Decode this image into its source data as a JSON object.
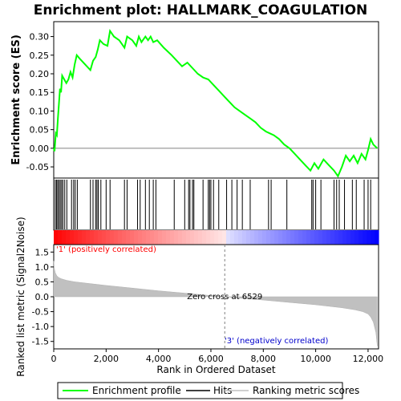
{
  "title": "Enrichment plot: HALLMARK_COAGULATION",
  "chart_data": {
    "type": "line",
    "top_panel": {
      "ylabel": "Enrichment score (ES)",
      "ylim": [
        -0.08,
        0.34
      ],
      "yticks": [
        -0.05,
        0.0,
        0.05,
        0.1,
        0.15,
        0.2,
        0.25,
        0.3
      ],
      "ytick_labels": [
        "-0.05",
        "0.00",
        "0.05",
        "0.10",
        "0.15",
        "0.20",
        "0.25",
        "0.30"
      ],
      "series": [
        {
          "name": "Enrichment profile",
          "color": "#00ff00",
          "x": [
            0,
            30,
            80,
            120,
            160,
            200,
            240,
            280,
            320,
            400,
            480,
            560,
            640,
            720,
            800,
            880,
            1000,
            1200,
            1400,
            1500,
            1600,
            1680,
            1760,
            1900,
            2050,
            2150,
            2300,
            2500,
            2700,
            2800,
            3000,
            3150,
            3250,
            3350,
            3500,
            3600,
            3700,
            3800,
            3950,
            4200,
            4500,
            4700,
            4900,
            5100,
            5300,
            5500,
            5700,
            5900,
            6100,
            6300,
            6500,
            6700,
            6900,
            7100,
            7300,
            7500,
            7700,
            7900,
            8100,
            8250,
            8400,
            8600,
            8800,
            9000,
            9200,
            9400,
            9600,
            9800,
            9950,
            10100,
            10300,
            10500,
            10700,
            10850,
            11000,
            11150,
            11300,
            11450,
            11600,
            11750,
            11900,
            12000,
            12100,
            12200,
            12350
          ],
          "y": [
            0.0,
            -0.008,
            0.04,
            0.035,
            0.08,
            0.12,
            0.16,
            0.15,
            0.195,
            0.185,
            0.175,
            0.185,
            0.205,
            0.19,
            0.225,
            0.25,
            0.24,
            0.225,
            0.21,
            0.235,
            0.245,
            0.265,
            0.29,
            0.28,
            0.275,
            0.315,
            0.3,
            0.29,
            0.27,
            0.3,
            0.29,
            0.275,
            0.3,
            0.285,
            0.3,
            0.29,
            0.3,
            0.285,
            0.29,
            0.27,
            0.25,
            0.235,
            0.22,
            0.23,
            0.215,
            0.2,
            0.19,
            0.185,
            0.17,
            0.155,
            0.14,
            0.125,
            0.11,
            0.1,
            0.09,
            0.08,
            0.07,
            0.055,
            0.045,
            0.04,
            0.035,
            0.025,
            0.01,
            0.0,
            -0.015,
            -0.03,
            -0.045,
            -0.06,
            -0.04,
            -0.055,
            -0.03,
            -0.045,
            -0.06,
            -0.075,
            -0.05,
            -0.02,
            -0.035,
            -0.02,
            -0.04,
            -0.015,
            -0.03,
            -0.005,
            0.025,
            0.01,
            0.0
          ]
        }
      ]
    },
    "hits_panel": {
      "hit_positions": [
        60,
        110,
        150,
        200,
        250,
        300,
        350,
        420,
        500,
        680,
        760,
        820,
        900,
        1400,
        1500,
        1600,
        1650,
        1700,
        1800,
        2000,
        2150,
        2700,
        2800,
        3200,
        3300,
        3500,
        3650,
        3800,
        3900,
        4600,
        5000,
        5150,
        5200,
        5300,
        5350,
        5700,
        5900,
        5950,
        6000,
        6100,
        6300,
        6600,
        6800,
        7000,
        7200,
        7500,
        8200,
        8300,
        8900,
        9850,
        9900,
        10000,
        10200,
        10700,
        10800,
        10900,
        11100,
        11400,
        11550,
        11850,
        12000,
        12100
      ]
    },
    "metric_panel": {
      "ylabel": "Ranked list metric (Signal2Noise)",
      "ylim": [
        -1.75,
        1.75
      ],
      "yticks": [
        -1.5,
        -1.0,
        -0.5,
        0.0,
        0.5,
        1.0,
        1.5
      ],
      "ytick_labels": [
        "-1.5",
        "-1.0",
        "-0.5",
        "0.0",
        "0.5",
        "1.0",
        "1.5"
      ],
      "zero_cross_label": "Zero cross at 6529",
      "zero_cross": 6529,
      "positive_label": "'1' (positively correlated)",
      "negative_label": "'3' (negatively correlated)",
      "x": [
        0,
        20,
        60,
        120,
        200,
        300,
        500,
        800,
        1200,
        2000,
        3000,
        4000,
        5000,
        6000,
        6529,
        7000,
        8000,
        9000,
        10000,
        11000,
        11500,
        11800,
        12000,
        12100,
        12200,
        12300,
        12350
      ],
      "y": [
        1.2,
        0.95,
        0.8,
        0.7,
        0.64,
        0.6,
        0.55,
        0.5,
        0.46,
        0.38,
        0.29,
        0.2,
        0.12,
        0.04,
        0.0,
        -0.04,
        -0.11,
        -0.19,
        -0.27,
        -0.37,
        -0.44,
        -0.5,
        -0.58,
        -0.68,
        -0.85,
        -1.2,
        -1.65
      ]
    },
    "xaxis": {
      "xlabel": "Rank in Ordered Dataset",
      "xlim": [
        0,
        12400
      ],
      "xticks": [
        0,
        2000,
        4000,
        6000,
        8000,
        10000,
        12000
      ],
      "xtick_labels": [
        "0",
        "2,000",
        "4,000",
        "6,000",
        "8,000",
        "10,000",
        "12,000"
      ]
    },
    "legend": {
      "placement": "bottom",
      "entries": [
        {
          "label": "Enrichment profile",
          "color": "#00ff00"
        },
        {
          "label": "Hits",
          "color": "#000000"
        },
        {
          "label": "Ranking metric scores",
          "color": "#c0c0c0"
        }
      ]
    }
  }
}
